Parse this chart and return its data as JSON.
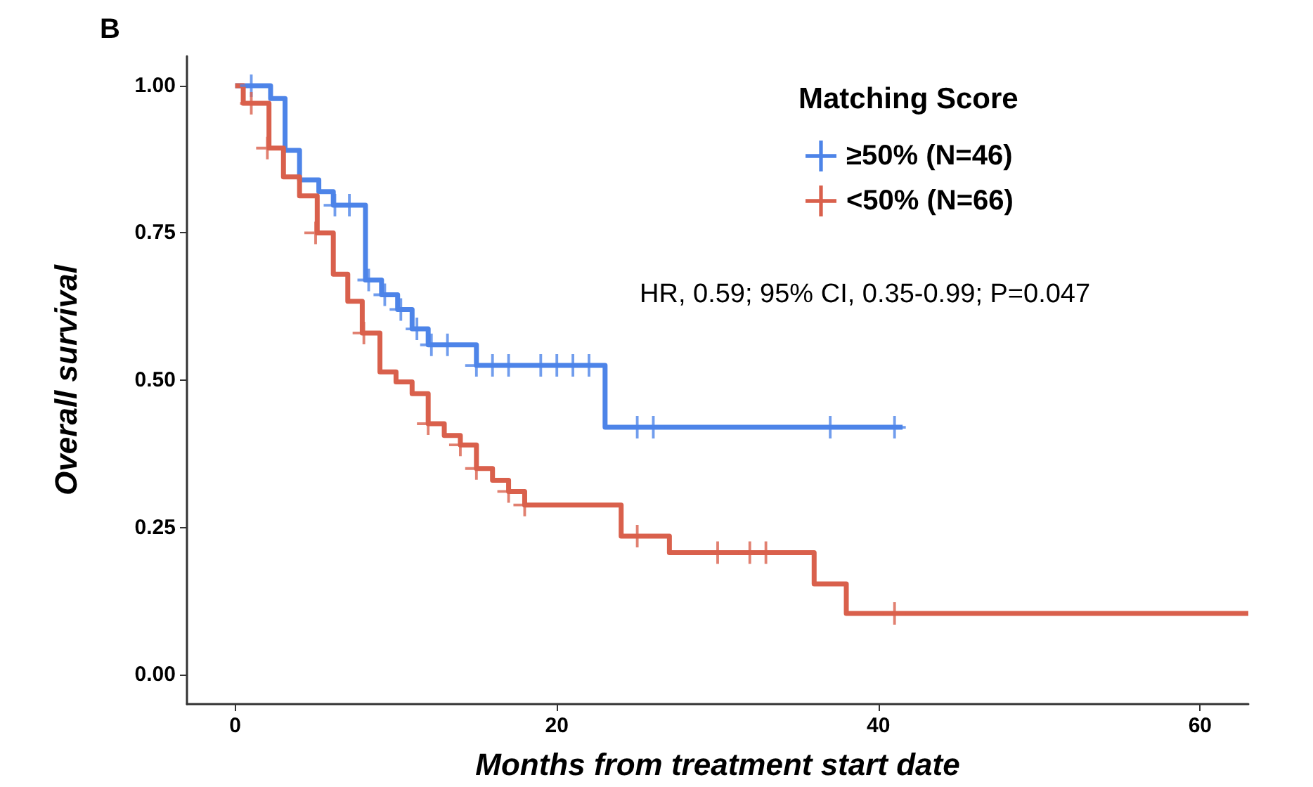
{
  "chart_data": {
    "type": "step",
    "title": "B",
    "xlabel": "Months from treatment start date",
    "ylabel": "Overall survival",
    "legend_title": "Matching Score",
    "legend": "top right",
    "grid": false,
    "annotations": [
      "HR, 0.59; 95% CI, 0.35-0.99; P=0.047"
    ],
    "xlim": [
      -3,
      63
    ],
    "xticks": [
      0,
      20,
      40,
      60
    ],
    "ylim": [
      -0.05,
      1.05
    ],
    "yticks": [
      {
        "value": 0,
        "label": "0.00"
      },
      {
        "value": 0.25,
        "label": "0.25"
      },
      {
        "value": 0.5,
        "label": "0.50"
      },
      {
        "value": 0.75,
        "label": "0.75"
      },
      {
        "value": 1,
        "label": "1.00"
      }
    ],
    "series": [
      {
        "name": "≥50% (N=46)",
        "marker": "none",
        "color": "#4d84e8",
        "x": [
          0,
          2.2,
          3.1,
          4,
          5.2,
          6.1,
          8.1,
          9.1,
          10.1,
          11,
          12,
          15,
          23,
          41.5
        ],
        "values": [
          1,
          0.978,
          0.89,
          0.84,
          0.82,
          0.797,
          0.67,
          0.645,
          0.62,
          0.587,
          0.56,
          0.525,
          0.42,
          0.42
        ]
      },
      {
        "name": "<50% (N=66)",
        "marker": "none",
        "color": "#d9604c",
        "x": [
          0,
          0.5,
          2.1,
          3,
          4,
          5.1,
          6.1,
          7,
          7.9,
          9,
          10,
          11,
          12,
          13,
          14,
          15,
          16,
          17,
          18,
          24,
          27,
          36,
          38,
          63
        ],
        "values": [
          1,
          0.97,
          0.894,
          0.845,
          0.813,
          0.75,
          0.68,
          0.634,
          0.58,
          0.514,
          0.497,
          0.477,
          0.426,
          0.406,
          0.39,
          0.35,
          0.33,
          0.311,
          0.288,
          0.235,
          0.207,
          0.154,
          0.104,
          0.104
        ]
      },
      {
        "type": "scatter",
        "marker": "cross",
        "color": "#4d84e8",
        "x": [
          1,
          6.2,
          7.1,
          8.3,
          9.3,
          10.3,
          11.3,
          12.2,
          13.2,
          15,
          16,
          17,
          19,
          20,
          21,
          22,
          25,
          26,
          37,
          41
        ],
        "values": [
          1,
          0.797,
          0.797,
          0.67,
          0.645,
          0.62,
          0.587,
          0.56,
          0.56,
          0.525,
          0.525,
          0.525,
          0.525,
          0.525,
          0.525,
          0.525,
          0.42,
          0.42,
          0.42,
          0.42
        ]
      },
      {
        "type": "scatter",
        "marker": "cross",
        "color": "#d9604c",
        "x": [
          1,
          2,
          5,
          8,
          12,
          14,
          15,
          17,
          18,
          25,
          30,
          32,
          33,
          41
        ],
        "values": [
          0.97,
          0.894,
          0.75,
          0.58,
          0.426,
          0.39,
          0.35,
          0.311,
          0.288,
          0.235,
          0.207,
          0.207,
          0.207,
          0.104
        ]
      }
    ]
  }
}
